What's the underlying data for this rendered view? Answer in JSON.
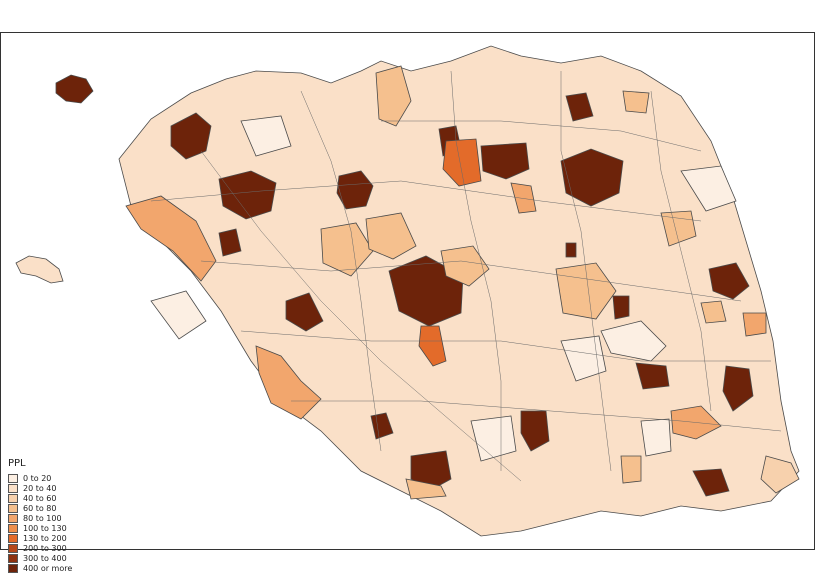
{
  "legend": {
    "title": "PPL",
    "classes": [
      {
        "label": "0 to 20",
        "color": "#fcefe3"
      },
      {
        "label": "20 to 40",
        "color": "#fbe1c9"
      },
      {
        "label": "40 to 60",
        "color": "#f7d1ad"
      },
      {
        "label": "60 to 80",
        "color": "#f5c08e"
      },
      {
        "label": "80 to 100",
        "color": "#f2a66d"
      },
      {
        "label": "100 to 130",
        "color": "#ee8f4c"
      },
      {
        "label": "130 to 200",
        "color": "#e36b2a"
      },
      {
        "label": "200 to 300",
        "color": "#b6481a"
      },
      {
        "label": "300 to 400",
        "color": "#8d310f"
      },
      {
        "label": "400 or more",
        "color": "#6d230a"
      }
    ]
  },
  "map": {
    "main_fill": "#fae0c8",
    "border_color": "#4a4a4a"
  }
}
